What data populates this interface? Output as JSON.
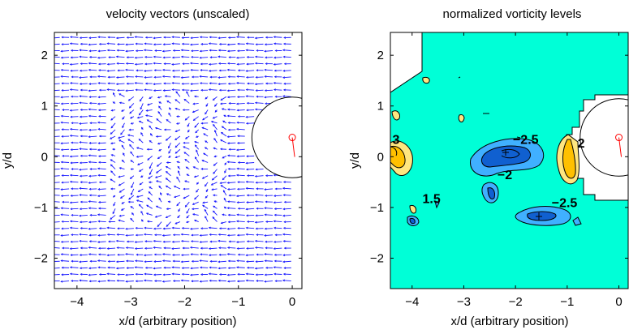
{
  "chart_data": [
    {
      "type": "quiver",
      "title": "velocity vectors (unscaled)",
      "xlabel": "x/d (arbitrary position)",
      "ylabel": "y/d",
      "xlim": [
        -4.42,
        0.18
      ],
      "ylim": [
        -2.6,
        2.45
      ],
      "xticks": [
        -4,
        -3,
        -2,
        -1,
        0
      ],
      "yticks": [
        -2,
        -1,
        0,
        1,
        2
      ],
      "xtick_labels": [
        "−4",
        "−3",
        "−2",
        "−1",
        "0"
      ],
      "ytick_labels": [
        "−2",
        "−1",
        "0",
        "1",
        "2"
      ],
      "grid": false,
      "vector_color": "#1a1aff",
      "cylinder": {
        "center": [
          0.0,
          0.38
        ],
        "radius": 0.75,
        "marker_color": "#ff0000"
      },
      "field": {
        "x_range": [
          -4.32,
          -0.02
        ],
        "y_range": [
          -2.45,
          2.35
        ],
        "nx": 26,
        "ny": 38,
        "freestream": "left",
        "wake_region": {
          "x": [
            -3.3,
            -1.1
          ],
          "y": [
            -1.4,
            1.3
          ]
        }
      }
    },
    {
      "type": "contour",
      "title": "normalized vorticity levels",
      "xlabel": "x/d (arbitrary position)",
      "ylabel": "y/d",
      "xlim": [
        -4.42,
        0.18
      ],
      "ylim": [
        -2.6,
        2.45
      ],
      "xticks": [
        -4,
        -3,
        -2,
        -1,
        0
      ],
      "yticks": [
        -2,
        -1,
        0,
        1,
        2
      ],
      "xtick_labels": [
        "−4",
        "−3",
        "−2",
        "−1",
        "0"
      ],
      "ytick_labels": [
        "−2",
        "−1",
        "0",
        "1",
        "2"
      ],
      "background_level": 0,
      "colors": {
        "background": "#00ffd7",
        "positive_low": "#ffe680",
        "positive_high": "#ffc000",
        "negative_low": "#40b0ff",
        "negative_high": "#1060d0",
        "line": "#000000",
        "masked": "#ffffff"
      },
      "contour_labels": [
        {
          "text": "3",
          "x": -4.38,
          "y": 0.35
        },
        {
          "text": "−2.5",
          "x": -2.05,
          "y": 0.35
        },
        {
          "text": "2",
          "x": -0.8,
          "y": 0.28
        },
        {
          "text": "−2",
          "x": -2.35,
          "y": -0.35
        },
        {
          "text": "1.5",
          "x": -3.8,
          "y": -0.82
        },
        {
          "text": "−2.5",
          "x": -1.3,
          "y": -0.9
        }
      ],
      "cylinder": {
        "center": [
          0.0,
          0.38
        ],
        "radius": 0.75,
        "marker_color": "#ff0000"
      }
    }
  ]
}
